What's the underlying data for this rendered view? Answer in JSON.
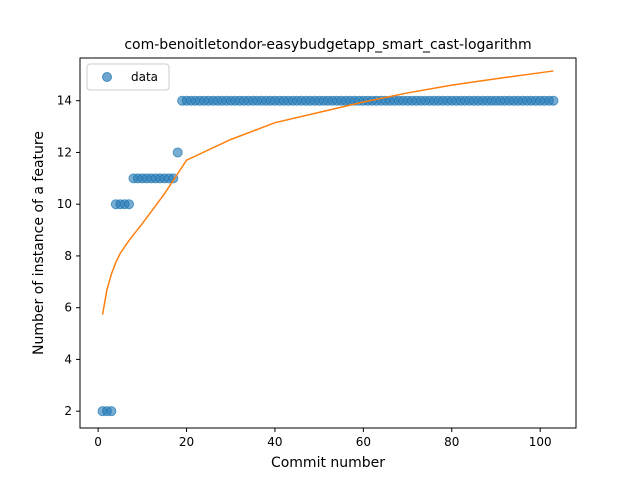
{
  "chart_data": {
    "type": "scatter",
    "title": "com-benoitletondor-easybudgetapp_smart_cast-logarithm",
    "xlabel": "Commit number",
    "ylabel": "Number of instance of a feature",
    "xlim": [
      -4.1,
      108.1
    ],
    "ylim": [
      1.35,
      15.65
    ],
    "x_ticks": [
      0,
      20,
      40,
      60,
      80,
      100
    ],
    "y_ticks": [
      2,
      4,
      6,
      8,
      10,
      12,
      14
    ],
    "grid": false,
    "legend": {
      "position": "top-left",
      "entries": [
        "data"
      ]
    },
    "series": [
      {
        "name": "data",
        "kind": "scatter",
        "color": "#1f77b4",
        "segments": [
          {
            "x_from": 1,
            "x_to": 3,
            "y": 2
          },
          {
            "x_from": 4,
            "x_to": 7,
            "y": 10
          },
          {
            "x_from": 8,
            "x_to": 17,
            "y": 11
          },
          {
            "x_from": 18,
            "x_to": 18,
            "y": 12
          },
          {
            "x_from": 19,
            "x_to": 103,
            "y": 14
          }
        ]
      },
      {
        "kind": "line",
        "color": "#ff7f0e",
        "points": [
          [
            1,
            5.73
          ],
          [
            2,
            6.7
          ],
          [
            3,
            7.3
          ],
          [
            4,
            7.75
          ],
          [
            5,
            8.1
          ],
          [
            7,
            8.6
          ],
          [
            10,
            9.25
          ],
          [
            15,
            10.4
          ],
          [
            20,
            11.7
          ],
          [
            30,
            12.5
          ],
          [
            40,
            13.15
          ],
          [
            50,
            13.55
          ],
          [
            60,
            13.95
          ],
          [
            70,
            14.3
          ],
          [
            80,
            14.6
          ],
          [
            90,
            14.85
          ],
          [
            103,
            15.15
          ]
        ]
      }
    ]
  }
}
